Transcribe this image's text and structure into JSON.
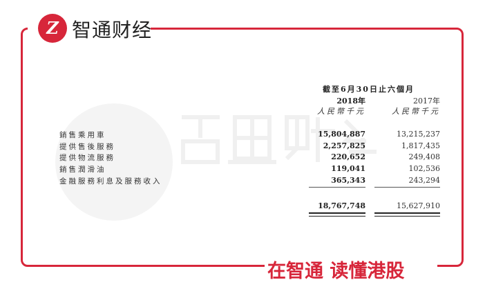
{
  "brand": {
    "logo_text": "Z",
    "name": "智通财经",
    "slogan": "在智通 读懂港股",
    "watermark": "智通财经",
    "accent": "#d7263a"
  },
  "table": {
    "period": "截至6月30日止六個月",
    "years": [
      "2018年",
      "2017年"
    ],
    "units": [
      "人民幣千元",
      "人民幣千元"
    ],
    "rows": [
      {
        "label": "銷售乘用車",
        "v2018": "15,804,887",
        "v2017": "13,215,237"
      },
      {
        "label": "提供售後服務",
        "v2018": "2,257,825",
        "v2017": "1,817,435"
      },
      {
        "label": "提供物流服務",
        "v2018": "220,652",
        "v2017": "249,408"
      },
      {
        "label": "銷售潤滑油",
        "v2018": "119,041",
        "v2017": "102,536"
      },
      {
        "label": "金融服務利息及服務收入",
        "v2018": "365,343",
        "v2017": "243,294"
      }
    ],
    "total": {
      "v2018": "18,767,748",
      "v2017": "15,627,910"
    }
  }
}
